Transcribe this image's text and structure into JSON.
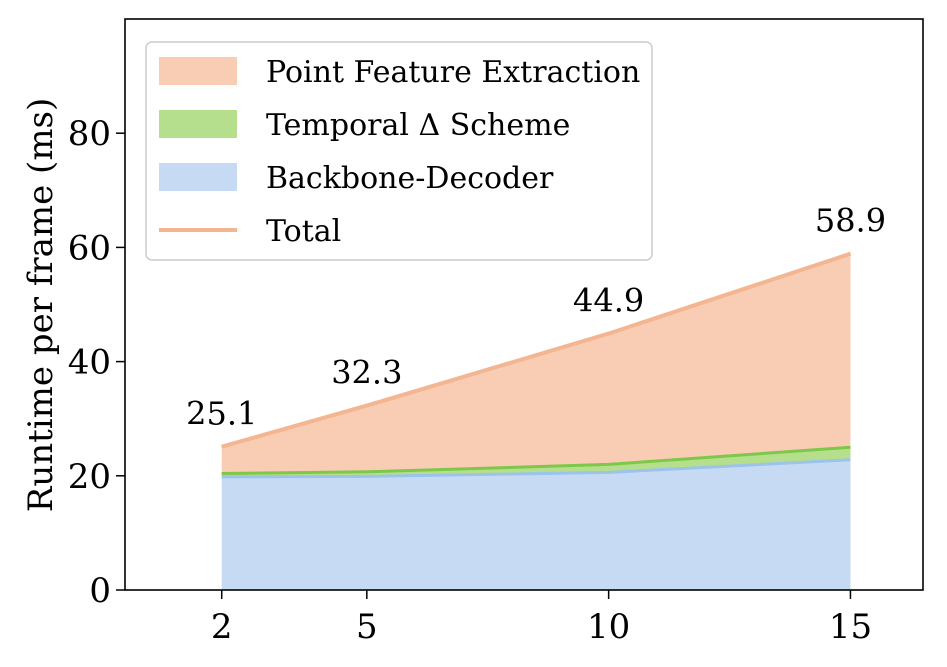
{
  "chart_data": {
    "type": "area",
    "title": "",
    "xlabel": "",
    "ylabel": "Runtime per frame (ms)",
    "x": [
      2,
      5,
      10,
      15
    ],
    "xlim": [
      0,
      16.5
    ],
    "ylim": [
      0,
      100
    ],
    "xticks": [
      2,
      5,
      10,
      15
    ],
    "yticks": [
      0,
      20,
      40,
      60,
      80
    ],
    "stacked": true,
    "series": [
      {
        "name": "Backbone-Decoder",
        "values": [
          19.8,
          19.9,
          20.6,
          22.8
        ],
        "color": "#c6dbf3",
        "line_color": "#9cc3ea"
      },
      {
        "name": "Temporal Δ Scheme",
        "values": [
          0.6,
          0.8,
          1.4,
          2.2
        ],
        "color": "#b5df8c",
        "line_color": "#7dc84a"
      },
      {
        "name": "Point Feature Extraction",
        "values": [
          4.7,
          11.6,
          22.9,
          33.9
        ],
        "color": "#f9cdb3",
        "line_color": "#f4b591"
      }
    ],
    "total": {
      "name": "Total",
      "values": [
        25.1,
        32.3,
        44.9,
        58.9
      ],
      "labels": [
        "25.1",
        "32.3",
        "44.9",
        "58.9"
      ],
      "color": "#f4b591"
    },
    "legend": {
      "position": "top-left",
      "entries": [
        {
          "label": "Point Feature Extraction",
          "kind": "patch",
          "color": "#f9cdb3"
        },
        {
          "label": "Temporal Δ Scheme",
          "kind": "patch",
          "color": "#b5df8c"
        },
        {
          "label": "Backbone-Decoder",
          "kind": "patch",
          "color": "#c6dbf3"
        },
        {
          "label": "Total",
          "kind": "line",
          "color": "#f4b591"
        }
      ]
    },
    "grid": false
  }
}
